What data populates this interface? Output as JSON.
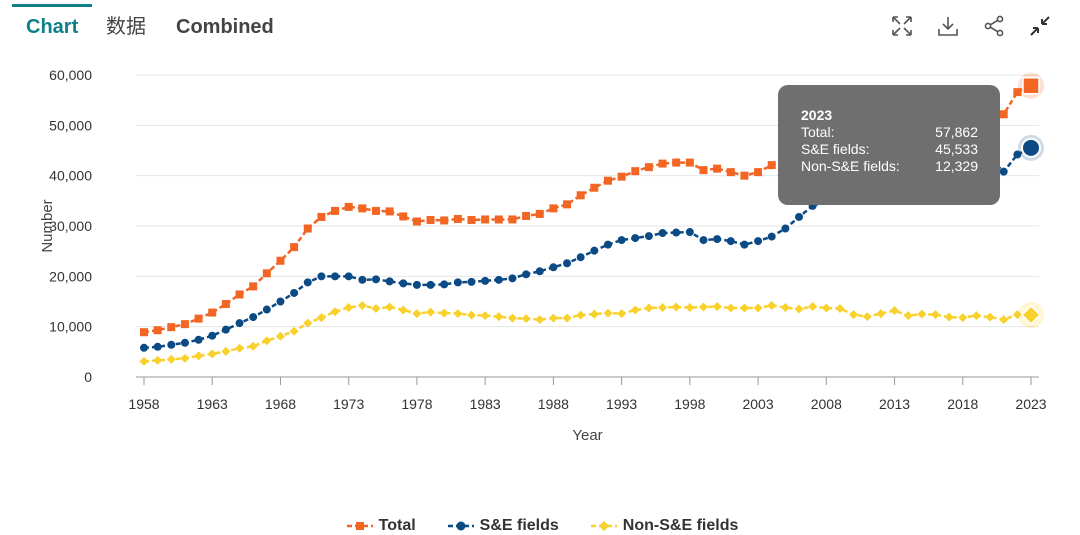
{
  "tabs": [
    {
      "label": "Chart"
    },
    {
      "label": "数据"
    },
    {
      "label": "Combined"
    }
  ],
  "toolbar": {
    "icons": [
      "expand-icon",
      "download-icon",
      "share-icon",
      "collapse-icon"
    ]
  },
  "colors": {
    "total": "#f26522",
    "se": "#0b4a84",
    "nonse": "#f9d12c",
    "accent": "#0f7f8a"
  },
  "tooltip": {
    "year": "2023",
    "rows": [
      {
        "label": "Total:",
        "value": "57,862"
      },
      {
        "label": "S&E fields:",
        "value": "45,533"
      },
      {
        "label": "Non-S&E fields:",
        "value": "12,329"
      }
    ]
  },
  "chart_data": {
    "type": "line",
    "title": "",
    "xlabel": "Year",
    "ylabel": "Number",
    "xlim": [
      1958,
      2023
    ],
    "ylim": [
      0,
      60000
    ],
    "x_ticks": [
      1958,
      1963,
      1968,
      1973,
      1978,
      1983,
      1988,
      1993,
      1998,
      2003,
      2008,
      2013,
      2018,
      2023
    ],
    "y_ticks": [
      0,
      10000,
      20000,
      30000,
      40000,
      50000,
      60000
    ],
    "y_tick_labels": [
      "0",
      "10,000",
      "20,000",
      "30,000",
      "40,000",
      "50,000",
      "60,000"
    ],
    "grid": true,
    "legend_position": "bottom",
    "highlight_x": 2023,
    "x": [
      1958,
      1959,
      1960,
      1961,
      1962,
      1963,
      1964,
      1965,
      1966,
      1967,
      1968,
      1969,
      1970,
      1971,
      1972,
      1973,
      1974,
      1975,
      1976,
      1977,
      1978,
      1979,
      1980,
      1981,
      1982,
      1983,
      1984,
      1985,
      1986,
      1987,
      1988,
      1989,
      1990,
      1991,
      1992,
      1993,
      1994,
      1995,
      1996,
      1997,
      1998,
      1999,
      2000,
      2001,
      2002,
      2003,
      2004,
      2005,
      2006,
      2007,
      2008,
      2009,
      2010,
      2011,
      2012,
      2013,
      2014,
      2015,
      2016,
      2017,
      2018,
      2019,
      2020,
      2021,
      2022,
      2023
    ],
    "series": [
      {
        "name": "Total",
        "values": [
          8900,
          9300,
          9900,
          10500,
          11600,
          12800,
          14500,
          16400,
          18000,
          20600,
          23100,
          25800,
          29500,
          31800,
          33000,
          33800,
          33500,
          33000,
          32900,
          31900,
          30900,
          31200,
          31100,
          31400,
          31200,
          31300,
          31300,
          31300,
          32000,
          32400,
          33500,
          34300,
          36100,
          37600,
          39000,
          39800,
          40900,
          41700,
          42400,
          42600,
          42600,
          41100,
          41400,
          40700,
          40000,
          40700,
          42100,
          43300,
          45300,
          48000,
          48700,
          49500,
          48100,
          48900,
          50900,
          51800,
          52700,
          54100,
          54800,
          54700,
          55000,
          55700,
          55200,
          52200,
          56600,
          57862
        ],
        "marker": "square"
      },
      {
        "name": "S&E fields",
        "values": [
          5800,
          6000,
          6400,
          6800,
          7400,
          8200,
          9400,
          10700,
          11900,
          13400,
          15000,
          16700,
          18800,
          20000,
          20000,
          20000,
          19300,
          19400,
          19000,
          18600,
          18300,
          18300,
          18400,
          18800,
          18900,
          19100,
          19300,
          19600,
          20400,
          21000,
          21800,
          22600,
          23800,
          25100,
          26300,
          27200,
          27600,
          28000,
          28600,
          28700,
          28800,
          27200,
          27400,
          27000,
          26300,
          27000,
          27900,
          29500,
          31800,
          34000,
          35000,
          35900,
          35700,
          36900,
          38300,
          39600,
          40500,
          41600,
          42400,
          42800,
          43200,
          43500,
          43300,
          40800,
          44200,
          45533
        ],
        "marker": "circle"
      },
      {
        "name": "Non-S&E fields",
        "values": [
          3100,
          3300,
          3500,
          3700,
          4200,
          4600,
          5100,
          5700,
          6100,
          7200,
          8100,
          9100,
          10700,
          11800,
          13000,
          13800,
          14200,
          13600,
          13900,
          13300,
          12600,
          12900,
          12700,
          12600,
          12300,
          12200,
          12000,
          11700,
          11600,
          11400,
          11700,
          11700,
          12300,
          12500,
          12700,
          12600,
          13300,
          13700,
          13800,
          13900,
          13800,
          13900,
          14000,
          13700,
          13700,
          13700,
          14200,
          13800,
          13500,
          14000,
          13700,
          13600,
          12400,
          12000,
          12600,
          13200,
          12200,
          12500,
          12400,
          11900,
          11800,
          12200,
          11900,
          11400,
          12400,
          12329
        ],
        "marker": "diamond"
      }
    ]
  }
}
